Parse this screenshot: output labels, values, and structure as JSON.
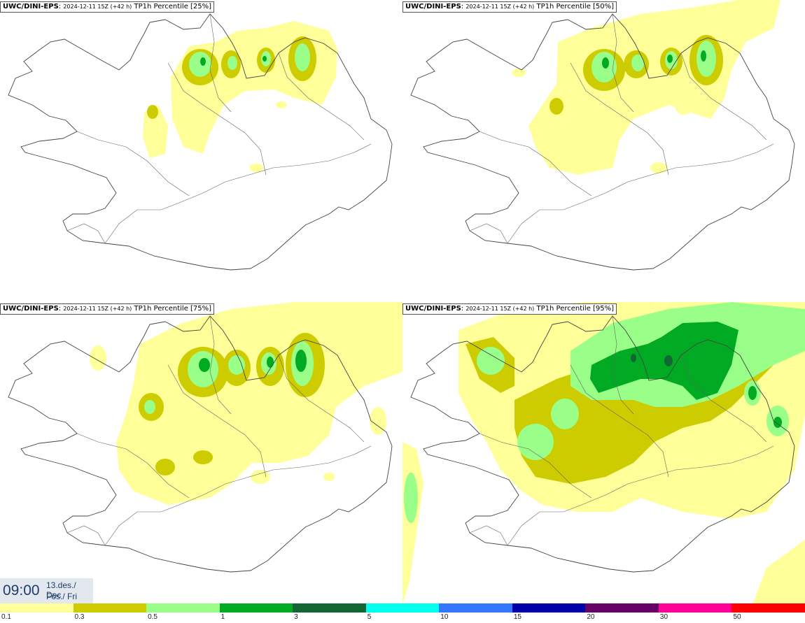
{
  "panels": [
    {
      "model": "UWC/DINI-EPS",
      "run": "2024-12-11 15Z (+42 h)",
      "product": "TP1h Percentile [25%]"
    },
    {
      "model": "UWC/DINI-EPS",
      "run": "2024-12-11 15Z (+42 h)",
      "product": "TP1h Percentile [50%]"
    },
    {
      "model": "UWC/DINI-EPS",
      "run": "2024-12-11 15Z (+42 h)",
      "product": "TP1h Percentile [75%]"
    },
    {
      "model": "UWC/DINI-EPS",
      "run": "2024-12-11 15Z (+42 h)",
      "product": "TP1h Percentile [95%]"
    }
  ],
  "valid_time": {
    "time": "09:00",
    "date_line1": "13.des./ Dec",
    "date_line2": "Fös./ Fri"
  },
  "legend": {
    "labels": [
      "0.1",
      "0.3",
      "0.5",
      "1",
      "3",
      "5",
      "10",
      "15",
      "20",
      "30",
      "50"
    ],
    "colors": [
      "#ffff99",
      "#cccc00",
      "#99ff88",
      "#00aa22",
      "#116633",
      "#00ffee",
      "#3377ff",
      "#0000aa",
      "#660066",
      "#ff0099",
      "#ff0000"
    ]
  },
  "colors": {
    "light": "#ffff99",
    "olive": "#cccc00",
    "lightgreen": "#99ff88",
    "green": "#00aa22",
    "darkgreen": "#116633",
    "coast": "#444444"
  }
}
